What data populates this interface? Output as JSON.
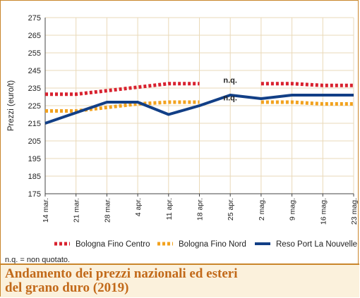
{
  "chart_data": {
    "type": "line",
    "title": "",
    "ylabel": "Prezzi (euro/t)",
    "xlabel": "",
    "ylim": [
      175,
      275
    ],
    "yticks": [
      175,
      185,
      195,
      205,
      215,
      225,
      235,
      245,
      255,
      265,
      275
    ],
    "categories": [
      "14 mar.",
      "21 mar.",
      "28 mar.",
      "4 apr.",
      "11 apr.",
      "18 apr.",
      "25 apr.",
      "2 mag.",
      "9 mag.",
      "16 mag.",
      "23 mag."
    ],
    "grid": true,
    "legend_position": "bottom",
    "series": [
      {
        "name": "Bologna Fino Centro",
        "color": "#d8222f",
        "style": "dotted",
        "values": [
          231.5,
          231.5,
          233.5,
          235.5,
          237.5,
          237.5,
          null,
          237.5,
          237.5,
          236.5,
          236.5
        ]
      },
      {
        "name": "Bologna Fino Nord",
        "color": "#f2a21e",
        "style": "dotted",
        "values": [
          222,
          222,
          224,
          226,
          227,
          227,
          null,
          227,
          227,
          226,
          226
        ]
      },
      {
        "name": "Reso Port La Nouvelle",
        "color": "#123f86",
        "style": "solid",
        "values": [
          215,
          221,
          227,
          227,
          220,
          225,
          231,
          229,
          231,
          231,
          231
        ]
      }
    ],
    "annotations": [
      {
        "text": "n.q.",
        "x": "25 apr.",
        "y": 238
      },
      {
        "text": "n.q.",
        "x": "25 apr.",
        "y": 228
      }
    ]
  },
  "footnote": "n.q. = non quotato.",
  "caption": {
    "line1": "Andamento dei prezzi nazionali ed esteri",
    "line2": "del grano duro (2019)"
  }
}
